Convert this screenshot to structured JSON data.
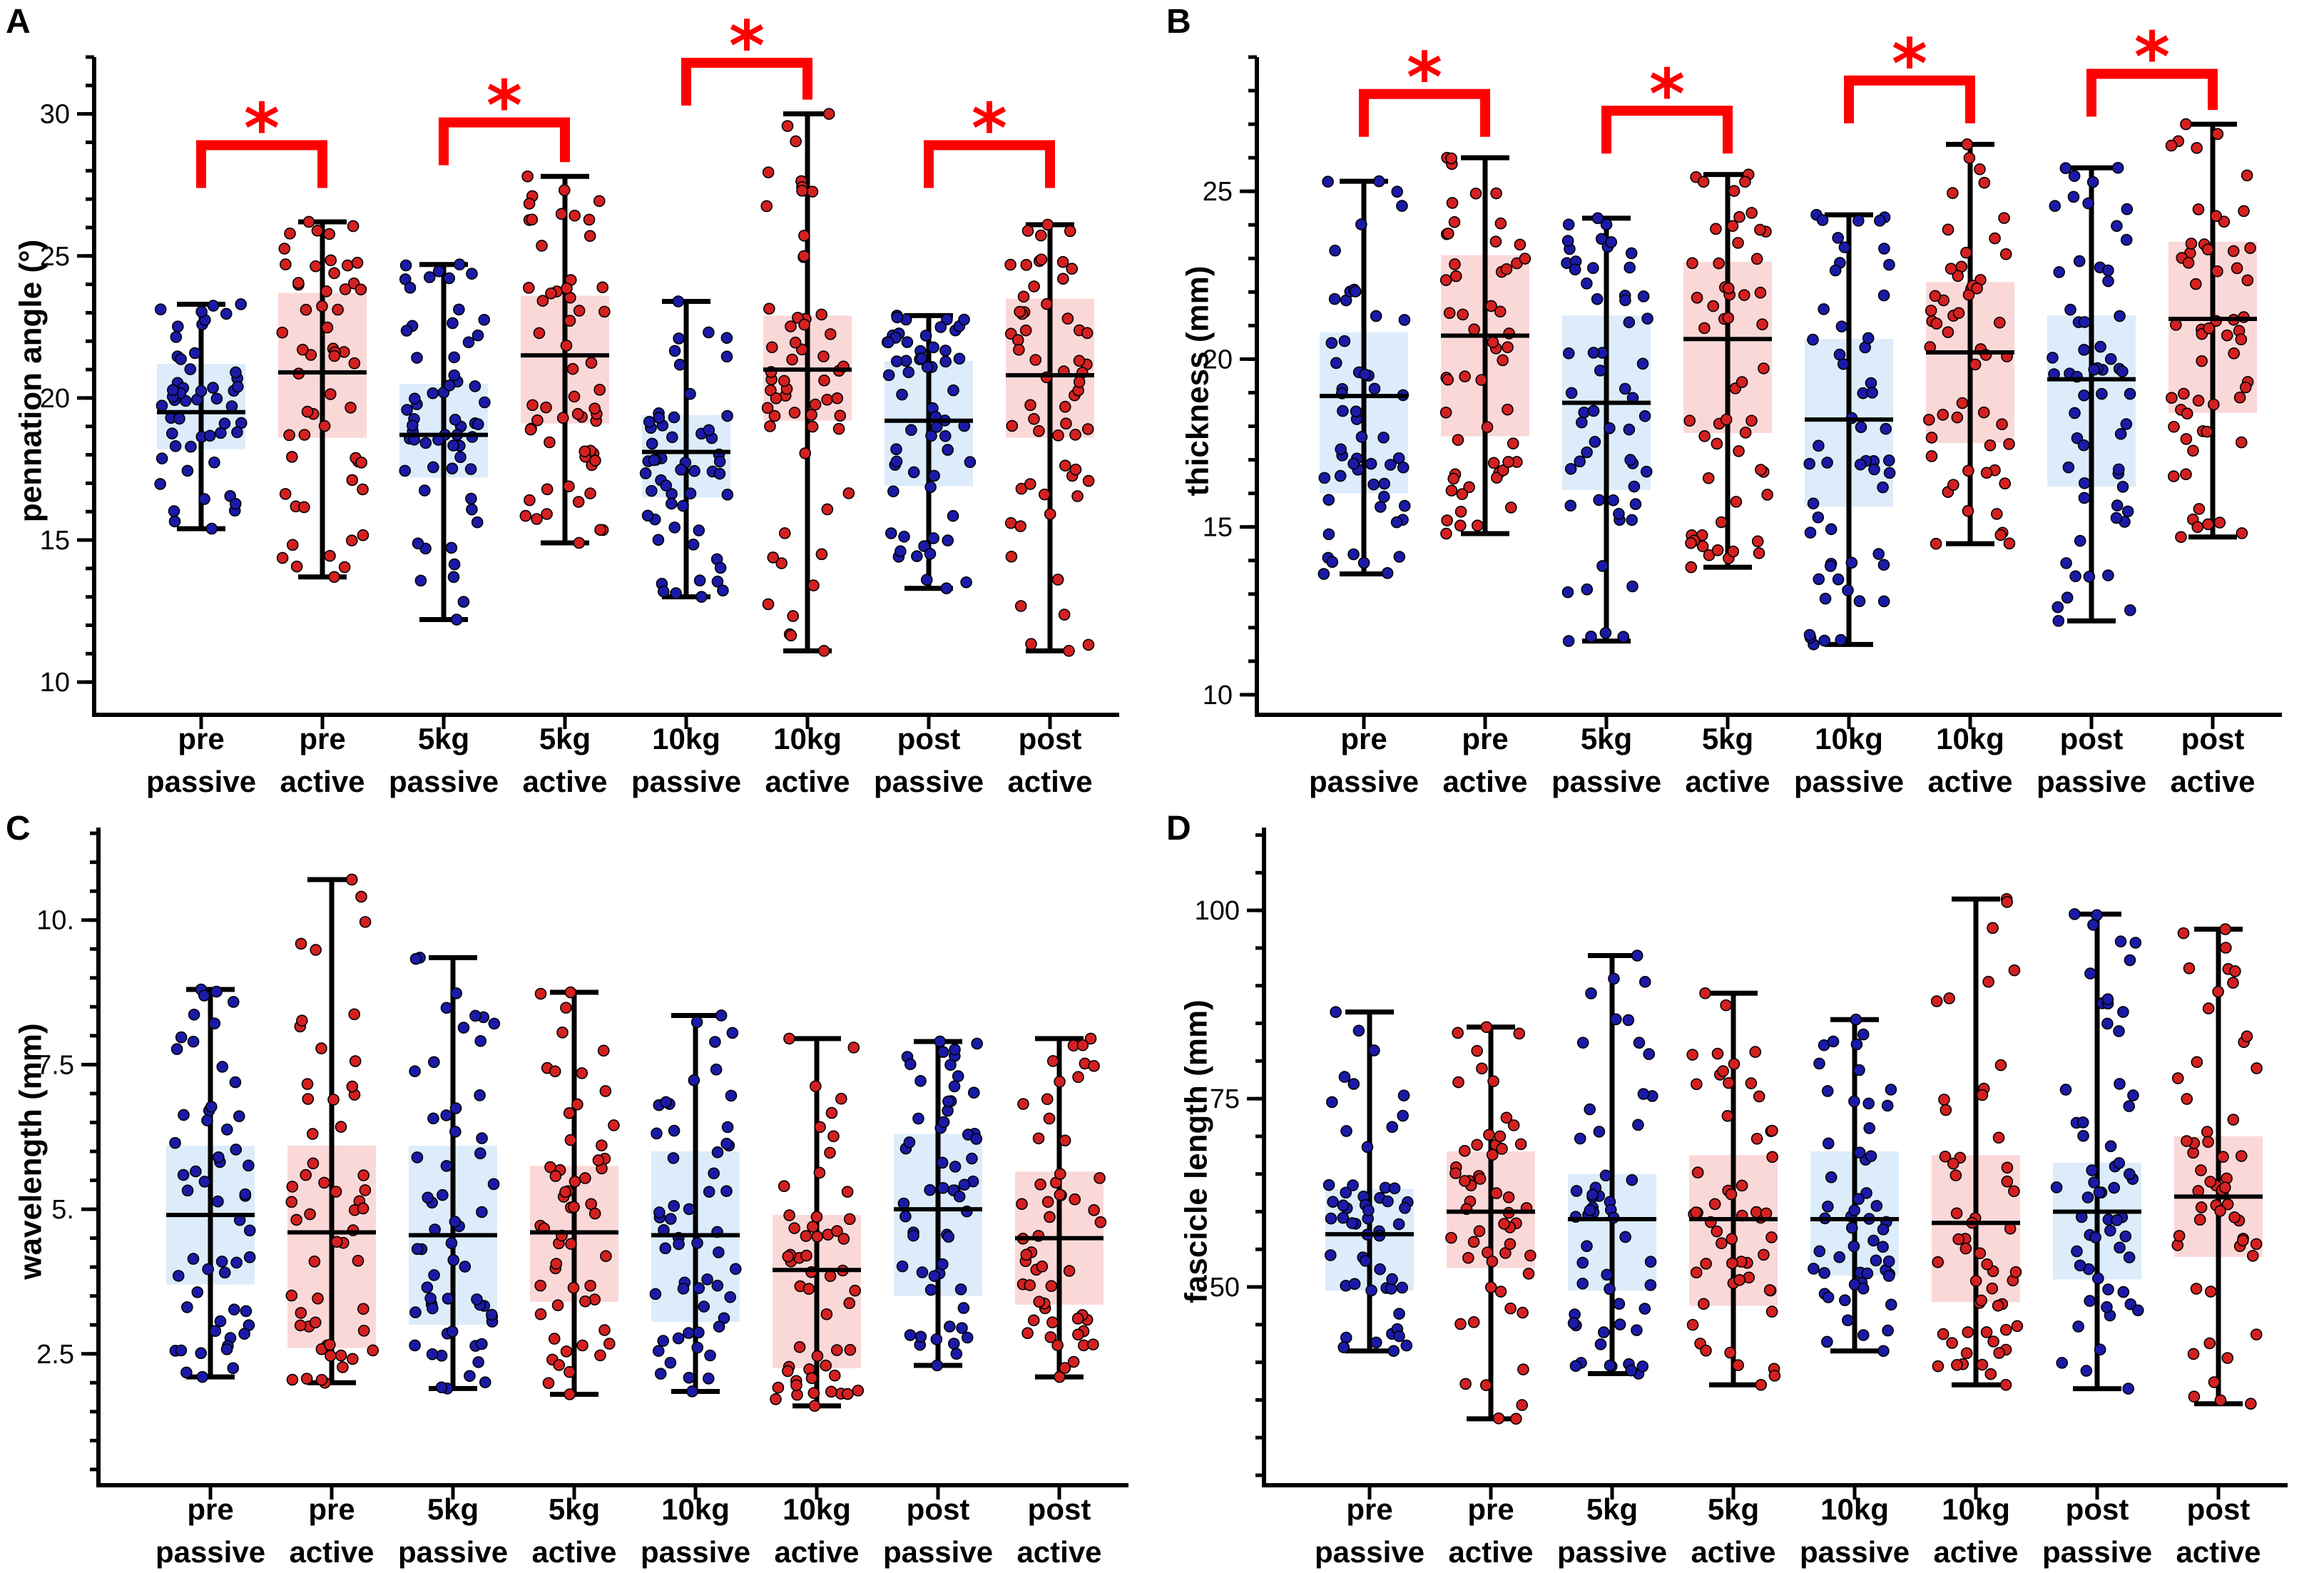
{
  "colors": {
    "passive_fill": "#dcecfa",
    "active_fill": "#fbd8d8",
    "passive_point": "#1a1aa8",
    "active_point": "#d42020",
    "significance": "#ff0000",
    "axis": "#000000"
  },
  "chart_data": [
    {
      "panel": "A",
      "type": "box",
      "ylabel": "pennation angle (°)",
      "ylim": [
        9.2,
        32
      ],
      "yticks": [
        10,
        15,
        20,
        25,
        30
      ],
      "categories": [
        {
          "line1": "pre",
          "line2": "passive",
          "group": "passive",
          "min": 15.4,
          "q1": 18.2,
          "median": 19.5,
          "q3": 21.2,
          "max": 23.3,
          "n": 52
        },
        {
          "line1": "pre",
          "line2": "active",
          "group": "active",
          "min": 13.7,
          "q1": 18.6,
          "median": 20.9,
          "q3": 23.7,
          "max": 26.2,
          "n": 55
        },
        {
          "line1": "5kg",
          "line2": "passive",
          "group": "passive",
          "min": 12.2,
          "q1": 17.2,
          "median": 18.7,
          "q3": 20.5,
          "max": 24.7,
          "n": 60
        },
        {
          "line1": "5kg",
          "line2": "active",
          "group": "active",
          "min": 14.9,
          "q1": 19.1,
          "median": 21.5,
          "q3": 23.6,
          "max": 27.8,
          "n": 58
        },
        {
          "line1": "10kg",
          "line2": "passive",
          "group": "passive",
          "min": 13.0,
          "q1": 16.5,
          "median": 18.1,
          "q3": 19.4,
          "max": 23.4,
          "n": 55
        },
        {
          "line1": "10kg",
          "line2": "active",
          "group": "active",
          "min": 11.1,
          "q1": 19.2,
          "median": 21.0,
          "q3": 22.9,
          "max": 30.0,
          "n": 58
        },
        {
          "line1": "post",
          "line2": "passive",
          "group": "passive",
          "min": 13.3,
          "q1": 16.9,
          "median": 19.2,
          "q3": 21.3,
          "max": 22.9,
          "n": 60
        },
        {
          "line1": "post",
          "line2": "active",
          "group": "active",
          "min": 11.1,
          "q1": 18.6,
          "median": 20.8,
          "q3": 23.5,
          "max": 26.1,
          "n": 60
        }
      ],
      "significance": [
        {
          "pair": [
            0,
            1
          ],
          "value": 28.9,
          "label": "*"
        },
        {
          "pair": [
            2,
            3
          ],
          "value": 29.7,
          "label": "*"
        },
        {
          "pair": [
            4,
            5
          ],
          "value": 31.8,
          "label": "*"
        },
        {
          "pair": [
            6,
            7
          ],
          "value": 28.9,
          "label": "*"
        }
      ]
    },
    {
      "panel": "B",
      "type": "box",
      "ylabel": "thickness (mm)",
      "ylim": [
        9.7,
        29
      ],
      "yticks": [
        10,
        15,
        20,
        25
      ],
      "categories": [
        {
          "line1": "pre",
          "line2": "passive",
          "group": "passive",
          "min": 13.6,
          "q1": 16.0,
          "median": 18.9,
          "q3": 20.8,
          "max": 25.3,
          "n": 55
        },
        {
          "line1": "pre",
          "line2": "active",
          "group": "active",
          "min": 14.8,
          "q1": 17.7,
          "median": 20.7,
          "q3": 23.1,
          "max": 26.0,
          "n": 55
        },
        {
          "line1": "5kg",
          "line2": "passive",
          "group": "passive",
          "min": 11.6,
          "q1": 16.1,
          "median": 18.7,
          "q3": 21.3,
          "max": 24.2,
          "n": 58
        },
        {
          "line1": "5kg",
          "line2": "active",
          "group": "active",
          "min": 13.8,
          "q1": 17.8,
          "median": 20.6,
          "q3": 22.9,
          "max": 25.5,
          "n": 55
        },
        {
          "line1": "10kg",
          "line2": "passive",
          "group": "passive",
          "min": 11.5,
          "q1": 15.6,
          "median": 18.2,
          "q3": 20.6,
          "max": 24.3,
          "n": 55
        },
        {
          "line1": "10kg",
          "line2": "active",
          "group": "active",
          "min": 14.5,
          "q1": 17.5,
          "median": 20.2,
          "q3": 22.3,
          "max": 26.4,
          "n": 55
        },
        {
          "line1": "post",
          "line2": "passive",
          "group": "passive",
          "min": 12.2,
          "q1": 16.2,
          "median": 19.4,
          "q3": 21.3,
          "max": 25.7,
          "n": 58
        },
        {
          "line1": "post",
          "line2": "active",
          "group": "active",
          "min": 14.7,
          "q1": 18.4,
          "median": 21.2,
          "q3": 23.5,
          "max": 27.0,
          "n": 58
        }
      ],
      "significance": [
        {
          "pair": [
            0,
            1
          ],
          "value": 27.9,
          "label": "*"
        },
        {
          "pair": [
            2,
            3
          ],
          "value": 27.4,
          "label": "*"
        },
        {
          "pair": [
            4,
            5
          ],
          "value": 28.3,
          "label": "*"
        },
        {
          "pair": [
            6,
            7
          ],
          "value": 28.5,
          "label": "*"
        }
      ]
    },
    {
      "panel": "C",
      "type": "box",
      "ylabel": "wavelength (mm)",
      "ylim": [
        0.4,
        11.6
      ],
      "yticks": [
        2.5,
        5.0,
        7.5,
        10.0
      ],
      "ytick_labels": [
        "2.5",
        "5.",
        "7.5",
        "10."
      ],
      "categories": [
        {
          "line1": "pre",
          "line2": "passive",
          "group": "passive",
          "min": 2.1,
          "q1": 3.7,
          "median": 4.9,
          "q3": 6.1,
          "max": 8.8,
          "n": 55
        },
        {
          "line1": "pre",
          "line2": "active",
          "group": "active",
          "min": 2.0,
          "q1": 2.6,
          "median": 4.6,
          "q3": 6.1,
          "max": 10.7,
          "n": 55
        },
        {
          "line1": "5kg",
          "line2": "passive",
          "group": "passive",
          "min": 1.9,
          "q1": 3.0,
          "median": 4.55,
          "q3": 6.1,
          "max": 9.35,
          "n": 58
        },
        {
          "line1": "5kg",
          "line2": "active",
          "group": "active",
          "min": 1.8,
          "q1": 3.4,
          "median": 4.6,
          "q3": 5.75,
          "max": 8.75,
          "n": 55
        },
        {
          "line1": "10kg",
          "line2": "passive",
          "group": "passive",
          "min": 1.85,
          "q1": 3.05,
          "median": 4.55,
          "q3": 6.0,
          "max": 8.35,
          "n": 55
        },
        {
          "line1": "10kg",
          "line2": "active",
          "group": "active",
          "min": 1.6,
          "q1": 2.25,
          "median": 3.95,
          "q3": 4.9,
          "max": 7.95,
          "n": 55
        },
        {
          "line1": "post",
          "line2": "passive",
          "group": "passive",
          "min": 2.3,
          "q1": 3.5,
          "median": 5.0,
          "q3": 6.3,
          "max": 7.9,
          "n": 58
        },
        {
          "line1": "post",
          "line2": "active",
          "group": "active",
          "min": 2.1,
          "q1": 3.35,
          "median": 4.5,
          "q3": 5.65,
          "max": 7.95,
          "n": 55
        }
      ],
      "significance": []
    },
    {
      "panel": "D",
      "type": "box",
      "ylabel": "fascicle length (mm)",
      "ylim": [
        25,
        111
      ],
      "yticks": [
        50,
        75,
        100
      ],
      "categories": [
        {
          "line1": "pre",
          "line2": "passive",
          "group": "passive",
          "min": 41.5,
          "q1": 49.5,
          "median": 57.0,
          "q3": 63.0,
          "max": 86.5,
          "n": 55
        },
        {
          "line1": "pre",
          "line2": "active",
          "group": "active",
          "min": 32.5,
          "q1": 52.5,
          "median": 60.0,
          "q3": 68.0,
          "max": 84.5,
          "n": 55
        },
        {
          "line1": "5kg",
          "line2": "passive",
          "group": "passive",
          "min": 38.5,
          "q1": 49.5,
          "median": 59.0,
          "q3": 65.0,
          "max": 94.0,
          "n": 55
        },
        {
          "line1": "5kg",
          "line2": "active",
          "group": "active",
          "min": 37.0,
          "q1": 47.5,
          "median": 59.0,
          "q3": 67.5,
          "max": 89.0,
          "n": 55
        },
        {
          "line1": "10kg",
          "line2": "passive",
          "group": "passive",
          "min": 41.5,
          "q1": 51.5,
          "median": 59.0,
          "q3": 68.0,
          "max": 85.5,
          "n": 55
        },
        {
          "line1": "10kg",
          "line2": "active",
          "group": "active",
          "min": 37.0,
          "q1": 48.0,
          "median": 58.5,
          "q3": 67.5,
          "max": 101.5,
          "n": 55
        },
        {
          "line1": "post",
          "line2": "passive",
          "group": "passive",
          "min": 36.5,
          "q1": 51.0,
          "median": 60.0,
          "q3": 66.5,
          "max": 99.5,
          "n": 58
        },
        {
          "line1": "post",
          "line2": "active",
          "group": "active",
          "min": 34.5,
          "q1": 54.0,
          "median": 62.0,
          "q3": 70.0,
          "max": 97.5,
          "n": 55
        }
      ],
      "significance": []
    }
  ]
}
